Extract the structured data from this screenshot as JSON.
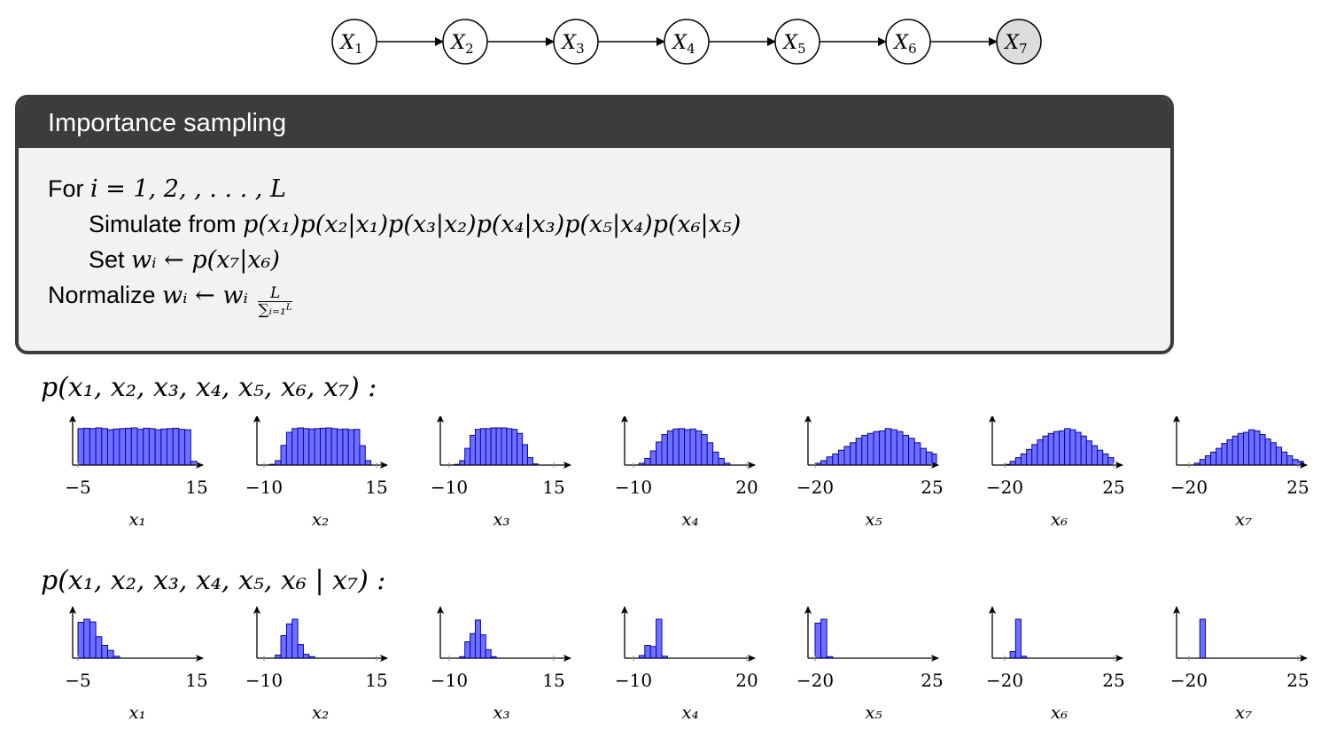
{
  "chain": {
    "nodes": [
      {
        "base": "X",
        "sub": "1",
        "observed": false
      },
      {
        "base": "X",
        "sub": "2",
        "observed": false
      },
      {
        "base": "X",
        "sub": "3",
        "observed": false
      },
      {
        "base": "X",
        "sub": "4",
        "observed": false
      },
      {
        "base": "X",
        "sub": "5",
        "observed": false
      },
      {
        "base": "X",
        "sub": "6",
        "observed": false
      },
      {
        "base": "X",
        "sub": "7",
        "observed": true
      }
    ]
  },
  "algorithm": {
    "title": "Importance sampling",
    "for_word": "For",
    "for_expr": "i = 1, 2, , . . . , L",
    "simulate_word": "Simulate from",
    "simulate_expr": "p(x₁)p(x₂|x₁)p(x₃|x₂)p(x₄|x₃)p(x₅|x₄)p(x₆|x₅)",
    "set_word": "Set",
    "set_expr": "wᵢ ← p(x₇|x₆)",
    "normalize_word": "Normalize",
    "normalize_expr": "wᵢ ← wᵢ",
    "frac_num": "L",
    "frac_den": "∑ᵢ₌₁ᴸ"
  },
  "prior_label": "p(x₁, x₂, x₃, x₄, x₅, x₆, x₇) :",
  "posterior_label": "p(x₁, x₂, x₃, x₄, x₅, x₆ | x₇) :",
  "chart_data": [
    {
      "type": "bar",
      "row": "prior",
      "xlabel": "x₁",
      "xlim": [
        -5,
        15
      ],
      "ticks": [
        "−5",
        "15"
      ],
      "bin_start": -5,
      "bin_width": 1,
      "values": [
        0.98,
        0.99,
        0.98,
        1.0,
        0.98,
        0.95,
        0.97,
        0.98,
        0.99,
        1.0,
        0.96,
        0.99,
        0.98,
        0.95,
        0.97,
        0.98,
        0.99,
        0.96,
        0.95,
        0.1
      ]
    },
    {
      "type": "bar",
      "row": "prior",
      "xlabel": "x₂",
      "xlim": [
        -10,
        15
      ],
      "ticks": [
        "−10",
        "15"
      ],
      "bin_start": -10,
      "bin_width": 1.25,
      "values": [
        0.0,
        0.02,
        0.12,
        0.53,
        0.88,
        0.98,
        1.0,
        0.98,
        0.97,
        0.98,
        0.99,
        1.0,
        0.98,
        0.96,
        0.97,
        0.95,
        0.96,
        0.52,
        0.12
      ]
    },
    {
      "type": "bar",
      "row": "prior",
      "xlabel": "x₃",
      "xlim": [
        -10,
        15
      ],
      "ticks": [
        "−10",
        "15"
      ],
      "bin_start": -10,
      "bin_width": 1.25,
      "values": [
        0.0,
        0.02,
        0.12,
        0.45,
        0.8,
        0.96,
        0.98,
        0.98,
        1.0,
        1.0,
        1.0,
        0.98,
        0.96,
        0.85,
        0.55,
        0.2,
        0.03
      ]
    },
    {
      "type": "bar",
      "row": "prior",
      "xlabel": "x₄",
      "xlim": [
        -10,
        20
      ],
      "ticks": [
        "−10",
        "20"
      ],
      "bin_start": -10,
      "bin_width": 1.5,
      "values": [
        0.0,
        0.05,
        0.18,
        0.38,
        0.62,
        0.82,
        0.92,
        0.97,
        0.98,
        0.95,
        0.97,
        0.92,
        0.82,
        0.6,
        0.35,
        0.18,
        0.05
      ]
    },
    {
      "type": "bar",
      "row": "prior",
      "xlabel": "x₅",
      "xlim": [
        -20,
        25
      ],
      "ticks": [
        "−20",
        "25"
      ],
      "bin_start": -20,
      "bin_width": 2.25,
      "values": [
        0.05,
        0.12,
        0.22,
        0.3,
        0.4,
        0.5,
        0.6,
        0.72,
        0.8,
        0.85,
        0.9,
        0.92,
        0.98,
        0.95,
        0.9,
        0.8,
        0.72,
        0.6,
        0.45,
        0.35,
        0.3
      ]
    },
    {
      "type": "bar",
      "row": "prior",
      "xlabel": "x₆",
      "xlim": [
        -20,
        25
      ],
      "ticks": [
        "−20",
        "25"
      ],
      "bin_start": -20,
      "bin_width": 2.25,
      "values": [
        0.02,
        0.1,
        0.2,
        0.3,
        0.42,
        0.55,
        0.68,
        0.78,
        0.85,
        0.9,
        0.92,
        0.98,
        0.95,
        0.88,
        0.78,
        0.65,
        0.52,
        0.4,
        0.3,
        0.2
      ]
    },
    {
      "type": "bar",
      "row": "prior",
      "xlabel": "x₇",
      "xlim": [
        -20,
        25
      ],
      "ticks": [
        "−20",
        "25"
      ],
      "bin_start": -20,
      "bin_width": 2.25,
      "values": [
        0.0,
        0.05,
        0.15,
        0.25,
        0.35,
        0.45,
        0.58,
        0.68,
        0.78,
        0.85,
        0.88,
        0.95,
        0.92,
        0.82,
        0.7,
        0.6,
        0.48,
        0.35,
        0.25,
        0.15,
        0.1
      ]
    },
    {
      "type": "bar",
      "row": "posterior",
      "xlabel": "x₁",
      "xlim": [
        -5,
        15
      ],
      "ticks": [
        "−5",
        "15"
      ],
      "bin_start": -5,
      "bin_width": 1,
      "values": [
        0.92,
        1.0,
        0.93,
        0.55,
        0.33,
        0.2,
        0.05,
        0.0,
        0.0,
        0.0,
        0.0,
        0.0,
        0.0,
        0.0,
        0.0,
        0.0,
        0.0,
        0.0,
        0.0,
        0.0
      ]
    },
    {
      "type": "bar",
      "row": "posterior",
      "xlabel": "x₂",
      "xlim": [
        -10,
        15
      ],
      "ticks": [
        "−10",
        "15"
      ],
      "bin_start": -10,
      "bin_width": 1.25,
      "values": [
        0.0,
        0.0,
        0.08,
        0.58,
        0.88,
        1.0,
        0.35,
        0.1,
        0.04,
        0.0,
        0.0,
        0.0,
        0.0,
        0.0,
        0.0,
        0.0,
        0.0,
        0.0,
        0.0,
        0.0
      ]
    },
    {
      "type": "bar",
      "row": "posterior",
      "xlabel": "x₃",
      "xlim": [
        -10,
        15
      ],
      "ticks": [
        "−10",
        "15"
      ],
      "bin_start": -10,
      "bin_width": 1.25,
      "values": [
        0.0,
        0.0,
        0.04,
        0.42,
        0.63,
        0.98,
        0.6,
        0.22,
        0.04,
        0.0,
        0.0,
        0.0,
        0.0,
        0.0,
        0.0,
        0.0,
        0.0,
        0.0,
        0.0,
        0.0
      ]
    },
    {
      "type": "bar",
      "row": "posterior",
      "xlabel": "x₄",
      "xlim": [
        -10,
        20
      ],
      "ticks": [
        "−10",
        "20"
      ],
      "bin_start": -10,
      "bin_width": 1.5,
      "values": [
        0.0,
        0.07,
        0.33,
        0.3,
        1.0,
        0.05,
        0.0,
        0.0,
        0.0,
        0.0,
        0.0,
        0.0,
        0.0,
        0.0,
        0.0,
        0.0,
        0.0,
        0.0,
        0.0,
        0.0
      ]
    },
    {
      "type": "bar",
      "row": "posterior",
      "xlabel": "x₅",
      "xlim": [
        -20,
        25
      ],
      "ticks": [
        "−20",
        "25"
      ],
      "bin_start": -20,
      "bin_width": 2.25,
      "values": [
        0.9,
        1.0,
        0.04,
        0.0,
        0.0,
        0.0,
        0.0,
        0.0,
        0.0,
        0.0,
        0.0,
        0.0,
        0.0,
        0.0,
        0.0,
        0.0,
        0.0,
        0.0,
        0.0,
        0.0
      ]
    },
    {
      "type": "bar",
      "row": "posterior",
      "xlabel": "x₆",
      "xlim": [
        -20,
        25
      ],
      "ticks": [
        "−20",
        "25"
      ],
      "bin_start": -20,
      "bin_width": 2.25,
      "values": [
        0.0,
        0.17,
        1.0,
        0.05,
        0.0,
        0.0,
        0.0,
        0.0,
        0.0,
        0.0,
        0.0,
        0.0,
        0.0,
        0.0,
        0.0,
        0.0,
        0.0,
        0.0,
        0.0,
        0.0
      ]
    },
    {
      "type": "bar",
      "row": "posterior",
      "xlabel": "x₇",
      "xlim": [
        -20,
        25
      ],
      "ticks": [
        "−20",
        "25"
      ],
      "bin_start": -20,
      "bin_width": 2.25,
      "values": [
        0.0,
        0.0,
        1.0,
        0.0,
        0.0,
        0.0,
        0.0,
        0.0,
        0.0,
        0.0,
        0.0,
        0.0,
        0.0,
        0.0,
        0.0,
        0.0,
        0.0,
        0.0,
        0.0,
        0.0
      ]
    }
  ],
  "colors": {
    "bar_fill": "#7070ff",
    "bar_stroke": "#0000cc",
    "axis": "#000080",
    "observed_node": "#dddddd",
    "box_dark": "#3c3c3c",
    "box_light": "#f2f2f2"
  }
}
